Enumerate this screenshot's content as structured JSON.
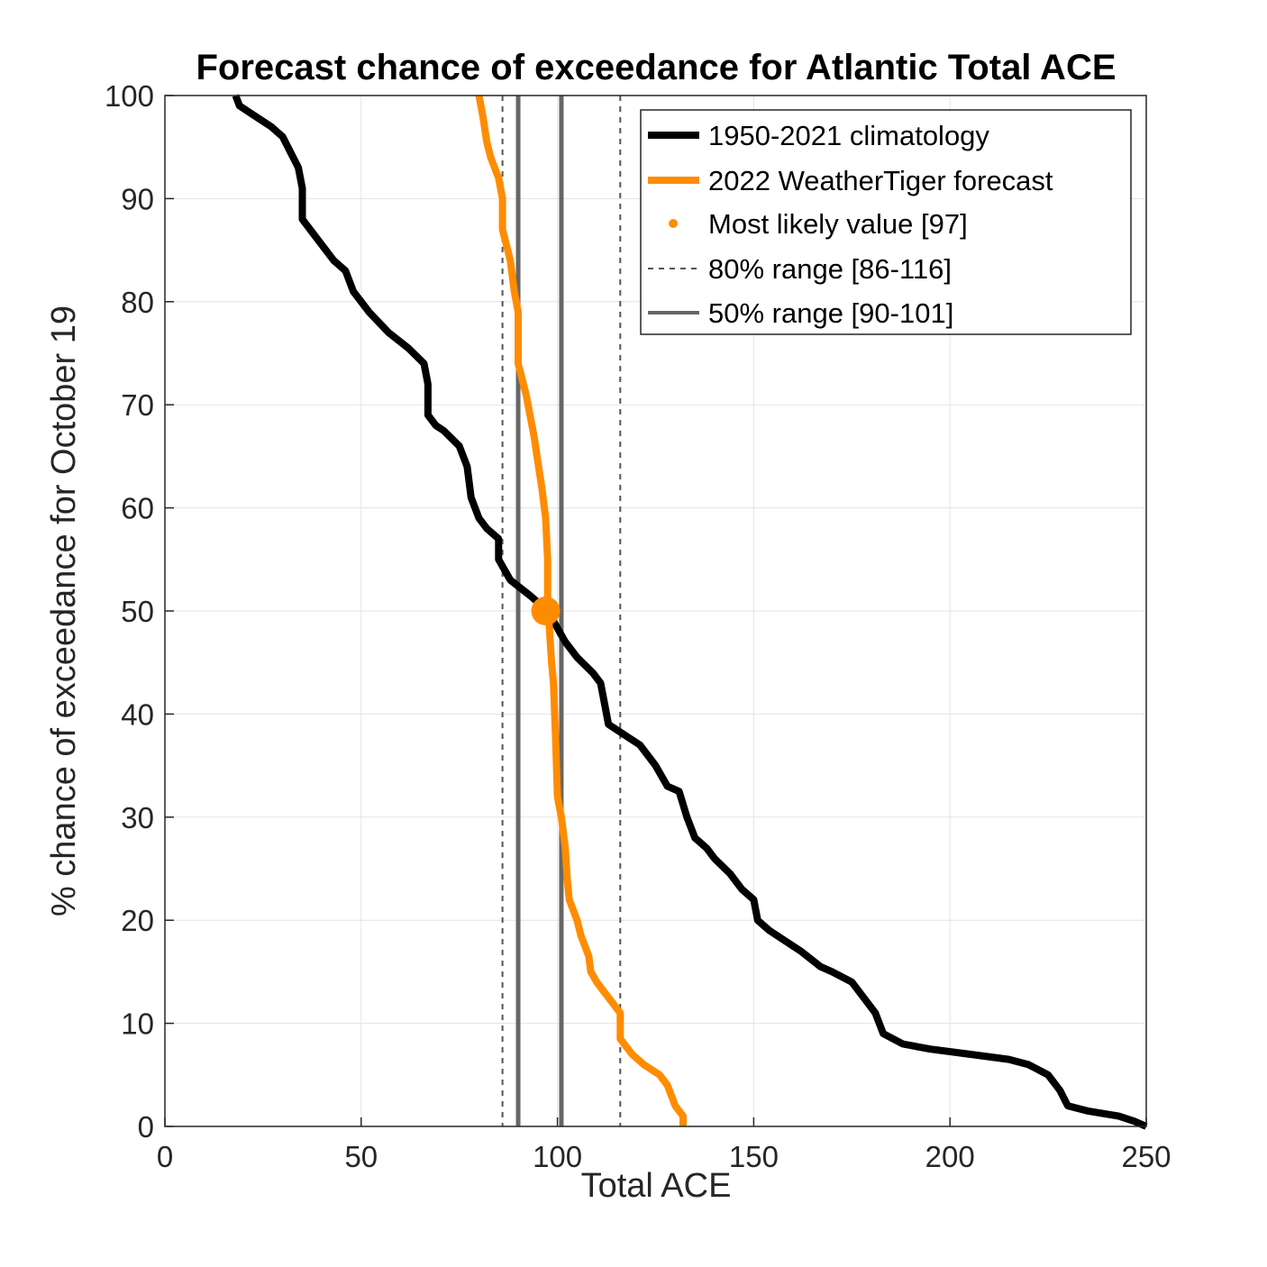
{
  "chart_data": {
    "type": "line",
    "title": "Forecast chance of exceedance for Atlantic Total ACE",
    "xlabel": "Total ACE",
    "ylabel": "% chance of exceedance for October 19",
    "xlim": [
      0,
      250
    ],
    "ylim": [
      0,
      100
    ],
    "xticks": [
      0,
      50,
      100,
      150,
      200,
      250
    ],
    "yticks": [
      0,
      10,
      20,
      30,
      40,
      50,
      60,
      70,
      80,
      90,
      100
    ],
    "grid": true,
    "legend_position": "top-right",
    "colors": {
      "climatology": "#000000",
      "forecast": "#ff8c00",
      "range80": "#555555",
      "range50": "#666666",
      "grid": "#e3e3e3",
      "axis": "#262626"
    },
    "series": [
      {
        "name": "1950-2021 climatology",
        "points": [
          [
            18,
            100
          ],
          [
            19,
            99
          ],
          [
            21,
            98.5
          ],
          [
            25,
            97.5
          ],
          [
            27,
            97
          ],
          [
            30,
            96
          ],
          [
            32,
            94.5
          ],
          [
            34,
            93
          ],
          [
            35,
            91
          ],
          [
            35,
            88
          ],
          [
            38,
            86.5
          ],
          [
            41,
            85
          ],
          [
            43,
            84
          ],
          [
            46,
            83
          ],
          [
            48,
            81
          ],
          [
            52,
            79
          ],
          [
            57,
            77
          ],
          [
            62,
            75.5
          ],
          [
            66,
            74
          ],
          [
            67,
            72
          ],
          [
            67,
            69
          ],
          [
            69,
            68
          ],
          [
            71,
            67.5
          ],
          [
            75,
            66
          ],
          [
            77,
            64
          ],
          [
            78,
            61
          ],
          [
            80,
            59
          ],
          [
            82,
            58
          ],
          [
            85,
            57
          ],
          [
            85,
            55
          ],
          [
            88,
            53
          ],
          [
            93,
            51.5
          ],
          [
            96,
            50.5
          ],
          [
            99,
            49
          ],
          [
            102,
            47
          ],
          [
            105,
            45.5
          ],
          [
            109,
            44
          ],
          [
            111,
            43
          ],
          [
            112,
            41
          ],
          [
            113,
            39
          ],
          [
            117,
            38
          ],
          [
            121,
            37
          ],
          [
            125,
            35
          ],
          [
            128,
            33
          ],
          [
            131,
            32.5
          ],
          [
            133,
            30
          ],
          [
            135,
            28
          ],
          [
            138,
            27
          ],
          [
            140,
            26
          ],
          [
            144,
            24.5
          ],
          [
            147,
            23
          ],
          [
            150,
            22
          ],
          [
            151,
            20
          ],
          [
            154,
            19
          ],
          [
            158,
            18
          ],
          [
            162,
            17
          ],
          [
            167,
            15.5
          ],
          [
            170,
            15
          ],
          [
            175,
            14
          ],
          [
            178,
            12.5
          ],
          [
            181,
            11
          ],
          [
            183,
            9
          ],
          [
            188,
            8
          ],
          [
            195,
            7.5
          ],
          [
            205,
            7
          ],
          [
            215,
            6.5
          ],
          [
            220,
            6
          ],
          [
            225,
            5
          ],
          [
            228,
            3.5
          ],
          [
            230,
            2
          ],
          [
            235,
            1.5
          ],
          [
            243,
            1
          ],
          [
            247,
            0.5
          ],
          [
            250,
            0
          ]
        ]
      },
      {
        "name": "2022 WeatherTiger forecast",
        "points": [
          [
            80,
            100
          ],
          [
            81,
            98
          ],
          [
            82,
            95.5
          ],
          [
            83,
            94
          ],
          [
            85,
            92
          ],
          [
            86,
            90
          ],
          [
            86,
            87
          ],
          [
            87,
            85.5
          ],
          [
            88,
            84
          ],
          [
            89,
            81
          ],
          [
            90,
            79
          ],
          [
            90,
            74
          ],
          [
            92,
            71
          ],
          [
            94,
            67
          ],
          [
            95,
            64.5
          ],
          [
            96,
            62
          ],
          [
            97,
            59
          ],
          [
            97.5,
            55
          ],
          [
            97.5,
            51
          ],
          [
            98,
            48
          ],
          [
            98.5,
            45
          ],
          [
            99,
            43
          ],
          [
            99.5,
            38
          ],
          [
            100,
            32
          ],
          [
            101,
            30
          ],
          [
            102,
            27
          ],
          [
            102.5,
            24
          ],
          [
            103,
            22
          ],
          [
            105,
            20
          ],
          [
            106,
            18.5
          ],
          [
            107,
            17.5
          ],
          [
            108,
            16.5
          ],
          [
            108.5,
            15
          ],
          [
            110,
            14
          ],
          [
            112,
            13
          ],
          [
            114,
            12
          ],
          [
            116,
            11
          ],
          [
            116,
            8.5
          ],
          [
            119,
            7
          ],
          [
            122,
            6
          ],
          [
            126,
            5
          ],
          [
            128,
            4
          ],
          [
            130,
            2
          ],
          [
            132,
            1
          ],
          [
            132,
            0
          ]
        ]
      }
    ],
    "most_likely": {
      "label": "Most likely value [97]",
      "x": 97,
      "y": 50
    },
    "range_80": {
      "label": "80% range [86-116]",
      "low": 86,
      "high": 116
    },
    "range_50": {
      "label": "50% range [90-101]",
      "low": 90,
      "high": 101
    }
  }
}
